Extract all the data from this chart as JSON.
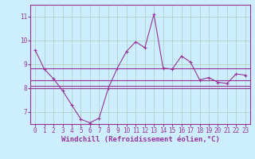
{
  "xlabel": "Windchill (Refroidissement éolien,°C)",
  "background_color": "#cceeff",
  "grid_color": "#aaccbb",
  "line_color": "#993399",
  "axis_color": "#993399",
  "xlim": [
    -0.5,
    23.5
  ],
  "ylim": [
    6.5,
    11.5
  ],
  "yticks": [
    7,
    8,
    9,
    10,
    11
  ],
  "xticks": [
    0,
    1,
    2,
    3,
    4,
    5,
    6,
    7,
    8,
    9,
    10,
    11,
    12,
    13,
    14,
    15,
    16,
    17,
    18,
    19,
    20,
    21,
    22,
    23
  ],
  "main_line": [
    9.6,
    8.8,
    8.4,
    7.9,
    7.3,
    6.7,
    6.55,
    6.75,
    8.0,
    8.85,
    9.55,
    9.95,
    9.7,
    11.1,
    8.85,
    8.8,
    9.35,
    9.1,
    8.35,
    8.45,
    8.25,
    8.2,
    8.6,
    8.55
  ],
  "avg_line1": 8.85,
  "avg_line2": 8.35,
  "avg_line3": 8.1,
  "avg_line4": 8.0,
  "tick_fontsize": 5.5,
  "xlabel_fontsize": 6.5
}
